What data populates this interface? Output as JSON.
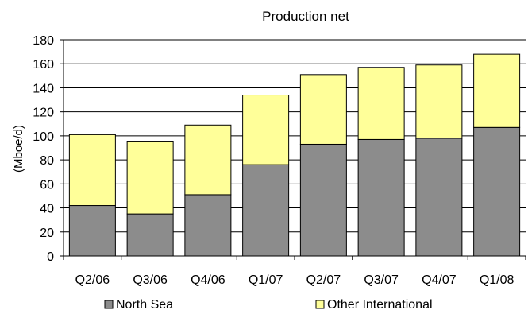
{
  "chart_data": {
    "type": "bar",
    "stacked": true,
    "title": "Production net",
    "xlabel": "",
    "ylabel": "(Mboe/d)",
    "ylim": [
      0,
      180
    ],
    "yticks": [
      0,
      20,
      40,
      60,
      80,
      100,
      120,
      140,
      160,
      180
    ],
    "grid": true,
    "legend": "bottom",
    "categories": [
      "Q2/06",
      "Q3/06",
      "Q4/06",
      "Q1/07",
      "Q2/07",
      "Q3/07",
      "Q4/07",
      "Q1/08"
    ],
    "series": [
      {
        "name": "North Sea",
        "color": "#8c8c8c",
        "values": [
          42,
          35,
          51,
          76,
          93,
          97,
          98,
          107
        ]
      },
      {
        "name": "Other International",
        "color": "#ffff99",
        "values": [
          59,
          60,
          58,
          58,
          58,
          60,
          61,
          61
        ]
      }
    ]
  }
}
